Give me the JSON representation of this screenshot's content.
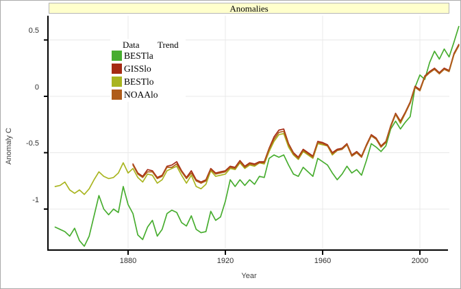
{
  "title": {
    "text": "Anomalies",
    "background": "#ffffcc",
    "border_color": "#b5b5b5"
  },
  "legend": {
    "data_header": "Data",
    "trend_header": "Trend",
    "items": [
      {
        "label": "BESTla",
        "color": "#47ad2f"
      },
      {
        "label": "GISSlo",
        "color": "#a52a13"
      },
      {
        "label": "BESTlo",
        "color": "#a9b520"
      },
      {
        "label": "NOAAlo",
        "color": "#af5c1a"
      }
    ]
  },
  "axes": {
    "x_label": "Year",
    "y_label": "Anomaly C",
    "x_ticks": [
      1880,
      1920,
      1960,
      2000
    ],
    "y_ticks": [
      {
        "v": 0.5,
        "label": "0.5"
      },
      {
        "v": 0,
        "label": "0"
      },
      {
        "v": -0.5,
        "label": "-0.5"
      },
      {
        "v": -1,
        "label": "-1"
      }
    ],
    "grid_color": "#e8e8e8",
    "axis_color": "#000000"
  },
  "chart_data": {
    "type": "line",
    "title": "Anomalies",
    "xlabel": "Year",
    "ylabel": "Anomaly C",
    "xlim": [
      1847,
      2017
    ],
    "ylim": [
      -1.36,
      0.72
    ],
    "grid": true,
    "legend_position": "top-left",
    "x": [
      1850,
      1852,
      1854,
      1856,
      1858,
      1860,
      1862,
      1864,
      1866,
      1868,
      1870,
      1872,
      1874,
      1876,
      1878,
      1880,
      1882,
      1884,
      1886,
      1888,
      1890,
      1892,
      1894,
      1896,
      1898,
      1900,
      1902,
      1904,
      1906,
      1908,
      1910,
      1912,
      1914,
      1916,
      1918,
      1920,
      1922,
      1924,
      1926,
      1928,
      1930,
      1932,
      1934,
      1936,
      1938,
      1940,
      1942,
      1944,
      1946,
      1948,
      1950,
      1952,
      1954,
      1956,
      1958,
      1960,
      1962,
      1964,
      1966,
      1968,
      1970,
      1972,
      1974,
      1976,
      1978,
      1980,
      1982,
      1984,
      1986,
      1988,
      1990,
      1992,
      1994,
      1996,
      1998,
      2000,
      2002,
      2004,
      2006,
      2008,
      2010,
      2012,
      2014,
      2016
    ],
    "series": [
      {
        "name": "BESTla",
        "color": "#47ad2f",
        "values": [
          -1.16,
          -1.18,
          -1.2,
          -1.24,
          -1.17,
          -1.28,
          -1.33,
          -1.24,
          -1.06,
          -0.88,
          -1.0,
          -1.05,
          -1.0,
          -1.03,
          -0.8,
          -0.96,
          -1.04,
          -1.23,
          -1.27,
          -1.16,
          -1.1,
          -1.24,
          -1.18,
          -1.04,
          -1.01,
          -1.03,
          -1.12,
          -1.15,
          -1.06,
          -1.18,
          -1.21,
          -1.2,
          -1.02,
          -1.1,
          -1.07,
          -0.93,
          -0.74,
          -0.8,
          -0.74,
          -0.79,
          -0.74,
          -0.78,
          -0.71,
          -0.72,
          -0.55,
          -0.52,
          -0.54,
          -0.52,
          -0.61,
          -0.69,
          -0.71,
          -0.63,
          -0.67,
          -0.71,
          -0.55,
          -0.58,
          -0.61,
          -0.68,
          -0.74,
          -0.69,
          -0.62,
          -0.68,
          -0.65,
          -0.7,
          -0.57,
          -0.42,
          -0.45,
          -0.49,
          -0.44,
          -0.29,
          -0.22,
          -0.29,
          -0.23,
          -0.18,
          0.08,
          0.19,
          0.15,
          0.3,
          0.4,
          0.33,
          0.42,
          0.35,
          0.48,
          0.62
        ]
      },
      {
        "name": "GISSlo",
        "color": "#a52a13",
        "values": [
          null,
          null,
          null,
          null,
          null,
          null,
          null,
          null,
          null,
          null,
          null,
          null,
          null,
          null,
          null,
          null,
          -0.6,
          -0.68,
          -0.71,
          -0.65,
          -0.66,
          -0.72,
          -0.7,
          -0.62,
          -0.61,
          -0.58,
          -0.66,
          -0.72,
          -0.66,
          -0.74,
          -0.76,
          -0.74,
          -0.64,
          -0.68,
          -0.67,
          -0.66,
          -0.62,
          -0.63,
          -0.57,
          -0.62,
          -0.59,
          -0.6,
          -0.58,
          -0.58,
          -0.46,
          -0.36,
          -0.3,
          -0.29,
          -0.42,
          -0.5,
          -0.54,
          -0.47,
          -0.5,
          -0.53,
          -0.4,
          -0.41,
          -0.43,
          -0.5,
          -0.47,
          -0.46,
          -0.42,
          -0.52,
          -0.49,
          -0.53,
          -0.43,
          -0.34,
          -0.37,
          -0.44,
          -0.4,
          -0.26,
          -0.15,
          -0.22,
          -0.14,
          -0.05,
          0.09,
          0.06,
          0.18,
          0.22,
          0.25,
          0.21,
          0.25,
          0.23,
          0.38,
          0.46
        ]
      },
      {
        "name": "BESTlo",
        "color": "#a9b520",
        "values": [
          -0.8,
          -0.79,
          -0.76,
          -0.83,
          -0.86,
          -0.83,
          -0.87,
          -0.82,
          -0.74,
          -0.67,
          -0.71,
          -0.73,
          -0.72,
          -0.68,
          -0.59,
          -0.68,
          -0.64,
          -0.72,
          -0.76,
          -0.69,
          -0.7,
          -0.77,
          -0.74,
          -0.66,
          -0.64,
          -0.62,
          -0.7,
          -0.77,
          -0.7,
          -0.8,
          -0.82,
          -0.78,
          -0.66,
          -0.71,
          -0.7,
          -0.69,
          -0.64,
          -0.65,
          -0.59,
          -0.64,
          -0.61,
          -0.62,
          -0.59,
          -0.6,
          -0.49,
          -0.4,
          -0.34,
          -0.33,
          -0.45,
          -0.52,
          -0.56,
          -0.49,
          -0.52,
          -0.55,
          -0.42,
          -0.43,
          -0.44,
          -0.52,
          -0.48,
          -0.47,
          -0.43,
          -0.53,
          -0.5,
          -0.54,
          -0.44,
          -0.35,
          -0.38,
          -0.45,
          -0.41,
          -0.27,
          -0.16,
          -0.24,
          -0.15,
          -0.06,
          0.08,
          0.05,
          0.17,
          0.21,
          0.24,
          0.2,
          0.24,
          0.22,
          0.37,
          0.45
        ]
      },
      {
        "name": "NOAAlo",
        "color": "#af5c1a",
        "values": [
          null,
          null,
          null,
          null,
          null,
          null,
          null,
          null,
          null,
          null,
          null,
          null,
          null,
          null,
          null,
          null,
          -0.61,
          -0.69,
          -0.72,
          -0.67,
          -0.67,
          -0.73,
          -0.71,
          -0.63,
          -0.63,
          -0.6,
          -0.67,
          -0.73,
          -0.68,
          -0.75,
          -0.77,
          -0.75,
          -0.65,
          -0.69,
          -0.68,
          -0.67,
          -0.63,
          -0.64,
          -0.58,
          -0.63,
          -0.6,
          -0.61,
          -0.59,
          -0.59,
          -0.47,
          -0.38,
          -0.32,
          -0.31,
          -0.43,
          -0.51,
          -0.55,
          -0.48,
          -0.51,
          -0.54,
          -0.41,
          -0.42,
          -0.44,
          -0.51,
          -0.48,
          -0.47,
          -0.43,
          -0.53,
          -0.5,
          -0.54,
          -0.44,
          -0.35,
          -0.38,
          -0.45,
          -0.41,
          -0.27,
          -0.16,
          -0.23,
          -0.15,
          -0.06,
          0.08,
          0.05,
          0.17,
          0.21,
          0.24,
          0.2,
          0.24,
          0.22,
          0.37,
          0.45
        ]
      }
    ]
  }
}
